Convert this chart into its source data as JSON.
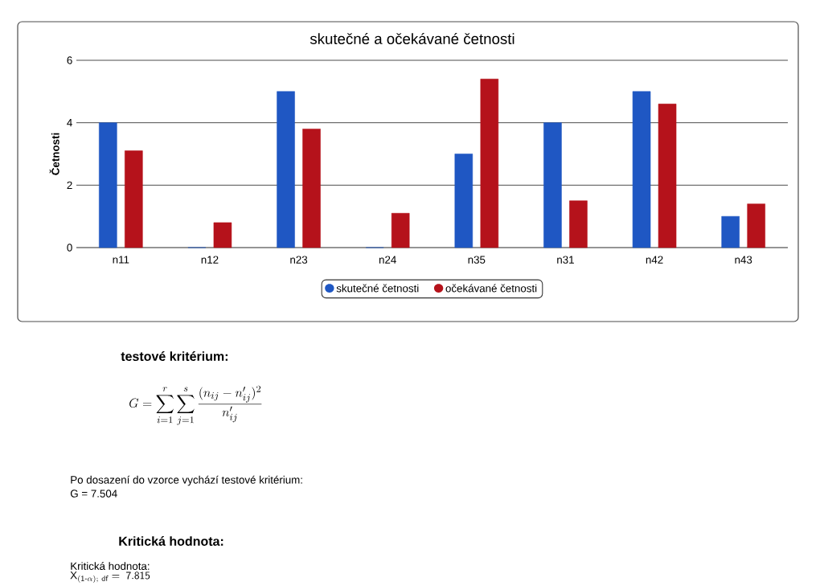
{
  "chart_data": {
    "type": "bar",
    "title": "skutečné a očekávané četnosti",
    "ylabel": "Četnosti",
    "categories": [
      "n11",
      "n12",
      "n23",
      "n24",
      "n35",
      "n31",
      "n42",
      "n43"
    ],
    "series": [
      {
        "name": "skutečné četnosti",
        "color": "#1f57c3",
        "values": [
          4,
          0,
          5,
          0,
          3,
          4,
          5,
          1
        ]
      },
      {
        "name": "očekávané četnosti",
        "color": "#b5121b",
        "values": [
          3.1,
          0.8,
          3.8,
          1.1,
          5.4,
          1.5,
          4.6,
          1.4
        ]
      }
    ],
    "ylim": [
      0,
      6
    ],
    "yticks": [
      0,
      2,
      4,
      6
    ],
    "grid": "y",
    "legend": "bottom",
    "annotations": [
      "testové kritérium:",
      "G=\\sum_{i=1}^{r}\\sum_{j=1}^{s}\\frac{(n_{ij}-n'_{ij})^2}{n'_{ij}}",
      "Po dosazení do vzorce vychází testové kritérium:",
      "G = 7.504",
      "Kritická hodnota:",
      "Kritická hodnota:",
      "\\mathsf{X}_{\\mathsf{(1\\text{-}\\alpha);\\ df}}\\mathsf{\\ =\\ 7.815}"
    ]
  }
}
